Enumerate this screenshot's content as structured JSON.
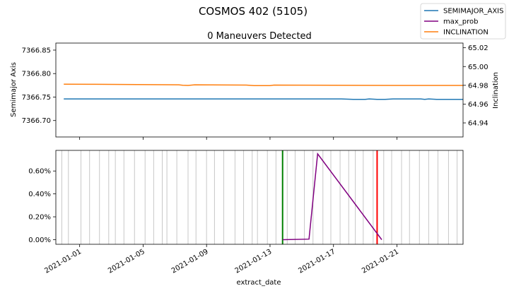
{
  "figure": {
    "suptitle": "COSMOS 402 (5105)"
  },
  "chart_data": [
    {
      "type": "line",
      "title": "0 Maneuvers Detected",
      "xlabel": "",
      "x_range": [
        "2020-12-30T12:00",
        "2021-01-25T04:00"
      ],
      "y_left": {
        "label": "Semimajor Axis",
        "ylim": [
          7366.665,
          7366.865
        ],
        "ticks": [
          "7366.70",
          "7366.75",
          "7366.80",
          "7366.85"
        ]
      },
      "y_right": {
        "label": "Inclination",
        "ylim": [
          64.925,
          65.025
        ],
        "ticks": [
          "64.94",
          "64.96",
          "64.98",
          "65.00",
          "65.02"
        ]
      },
      "grid": false,
      "legend": "figure top-right",
      "series": [
        {
          "name": "SEMIMAJOR_AXIS",
          "axis": "left",
          "color": "#1f77b4",
          "points": [
            [
              "2020-12-31T00:00",
              7366.746
            ],
            [
              "2021-01-13T12:00",
              7366.746
            ],
            [
              "2021-01-17T12:00",
              7366.746
            ],
            [
              "2021-01-18T06:00",
              7366.745
            ],
            [
              "2021-01-19T00:00",
              7366.745
            ],
            [
              "2021-01-19T06:00",
              7366.746
            ],
            [
              "2021-01-19T18:00",
              7366.745
            ],
            [
              "2021-01-20T06:00",
              7366.745
            ],
            [
              "2021-01-20T18:00",
              7366.746
            ],
            [
              "2021-01-22T12:00",
              7366.746
            ],
            [
              "2021-01-22T18:00",
              7366.745
            ],
            [
              "2021-01-23T00:00",
              7366.746
            ],
            [
              "2021-01-23T12:00",
              7366.745
            ],
            [
              "2021-01-25T04:00",
              7366.745
            ]
          ]
        },
        {
          "name": "INCLINATION",
          "axis": "right",
          "color": "#ff7f0e",
          "points": [
            [
              "2020-12-31T00:00",
              64.9812
            ],
            [
              "2021-01-02T00:00",
              64.9811
            ],
            [
              "2021-01-07T06:00",
              64.9806
            ],
            [
              "2021-01-07T12:00",
              64.9801
            ],
            [
              "2021-01-07T20:00",
              64.9799
            ],
            [
              "2021-01-08T06:00",
              64.9806
            ],
            [
              "2021-01-11T12:00",
              64.9803
            ],
            [
              "2021-01-12T00:00",
              64.9797
            ],
            [
              "2021-01-13T00:00",
              64.9797
            ],
            [
              "2021-01-13T06:00",
              64.9803
            ],
            [
              "2021-01-17T00:00",
              64.9801
            ],
            [
              "2021-01-21T00:00",
              64.9799
            ],
            [
              "2021-01-25T04:00",
              64.9799
            ]
          ]
        }
      ]
    },
    {
      "type": "line",
      "title": "",
      "xlabel": "extract_date",
      "x_range": [
        "2020-12-30T12:00",
        "2021-01-25T04:00"
      ],
      "x_ticks": [
        "2021-01-01",
        "2021-01-05",
        "2021-01-09",
        "2021-01-13",
        "2021-01-17",
        "2021-01-21"
      ],
      "ylabel": "",
      "ylim": [
        -0.0004,
        0.0078
      ],
      "y_ticks": [
        "0.00%",
        "0.20%",
        "0.40%",
        "0.60%"
      ],
      "grid": false,
      "series": [
        {
          "name": "max_prob",
          "color": "#800080",
          "points": [
            [
              "2021-01-13T19:00",
              0.0
            ],
            [
              "2021-01-15T11:00",
              5e-05
            ],
            [
              "2021-01-16T00:00",
              0.0075
            ],
            [
              "2021-01-20T01:00",
              0.0
            ]
          ]
        }
      ],
      "observation_lines": {
        "color": "#c8c8c8",
        "dates": [
          "2020-12-30T21:00",
          "2020-12-31T07:00",
          "2021-01-01T02:00",
          "2021-01-01T15:00",
          "2021-01-02T06:00",
          "2021-01-02T20:00",
          "2021-01-03T06:00",
          "2021-01-03T19:00",
          "2021-01-04T11:00",
          "2021-01-05T03:00",
          "2021-01-05T16:00",
          "2021-01-06T05:00",
          "2021-01-06T12:00",
          "2021-01-07T03:00",
          "2021-01-07T20:00",
          "2021-01-08T08:00",
          "2021-01-09T00:00",
          "2021-01-09T12:00",
          "2021-01-10T02:00",
          "2021-01-10T19:00",
          "2021-01-11T08:00",
          "2021-01-11T21:00",
          "2021-01-12T05:00",
          "2021-01-12T20:00",
          "2021-01-13T09:00",
          "2021-01-14T02:00",
          "2021-01-14T14:00",
          "2021-01-15T04:00",
          "2021-01-15T17:00",
          "2021-01-16T08:00",
          "2021-01-16T20:00",
          "2021-01-17T10:00",
          "2021-01-17T23:00",
          "2021-01-18T09:00",
          "2021-01-18T21:00",
          "2021-01-19T12:00",
          "2021-01-20T04:00",
          "2021-01-20T16:00",
          "2021-01-21T07:00",
          "2021-01-21T19:00",
          "2021-01-22T10:00",
          "2021-01-23T00:00",
          "2021-01-23T14:00",
          "2021-01-24T06:00",
          "2021-01-24T19:00"
        ]
      },
      "markers": [
        {
          "date": "2021-01-13T19:00",
          "color": "#008000"
        },
        {
          "date": "2021-01-19T18:00",
          "color": "#ff0000"
        }
      ]
    }
  ],
  "legend": {
    "entries": [
      {
        "label": "SEMIMAJOR_AXIS",
        "color": "#1f77b4"
      },
      {
        "label": "max_prob",
        "color": "#800080"
      },
      {
        "label": "INCLINATION",
        "color": "#ff7f0e"
      }
    ]
  }
}
